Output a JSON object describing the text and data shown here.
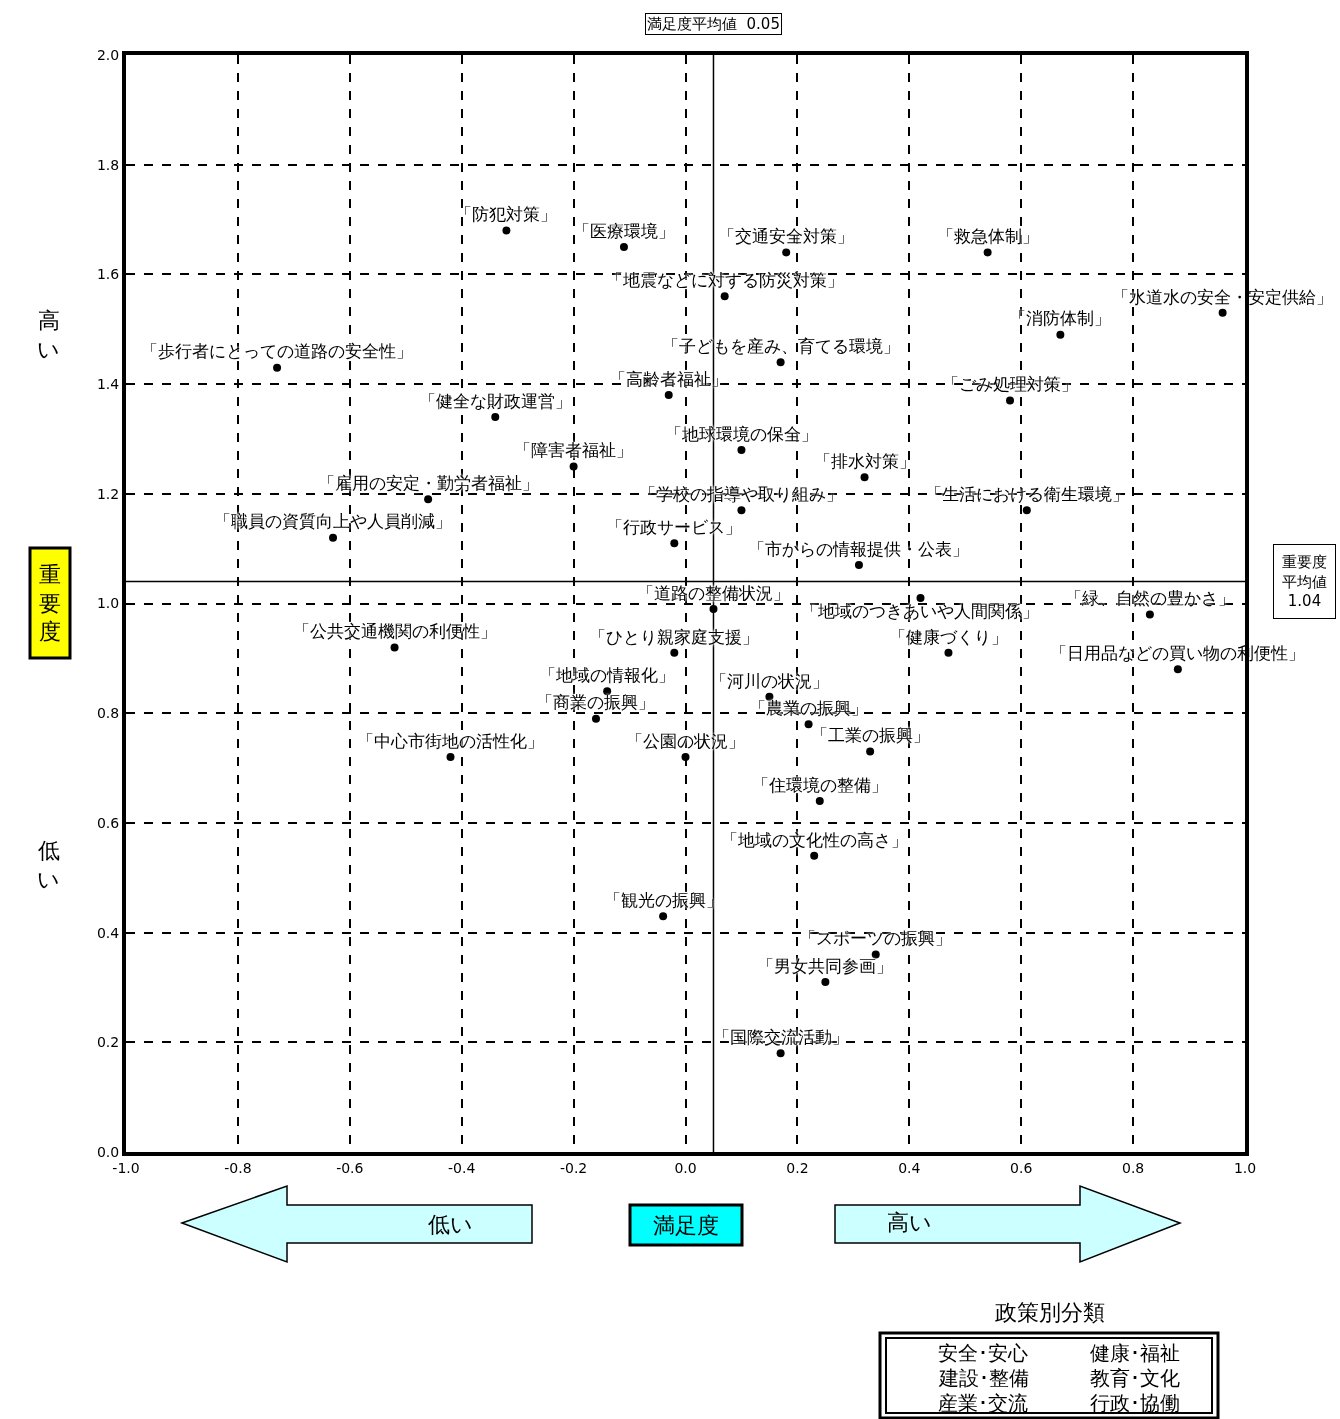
{
  "chart_data": {
    "type": "scatter",
    "marker": "circle",
    "xlabel": "満足度",
    "ylabel": "重要度",
    "xlim": [
      -1.0,
      1.0
    ],
    "ylim": [
      0.0,
      2.0
    ],
    "xticks": [
      {
        "value": -1.0,
        "label": "-1.0"
      },
      {
        "value": -0.8,
        "label": "-0.8"
      },
      {
        "value": -0.6,
        "label": "-0.6"
      },
      {
        "value": -0.4,
        "label": "-0.4"
      },
      {
        "value": -0.2,
        "label": "-0.2"
      },
      {
        "value": 0.0,
        "label": "0.0"
      },
      {
        "value": 0.2,
        "label": "0.2"
      },
      {
        "value": 0.4,
        "label": "0.4"
      },
      {
        "value": 0.6,
        "label": "0.6"
      },
      {
        "value": 0.8,
        "label": "0.8"
      },
      {
        "value": 1.0,
        "label": "1.0"
      }
    ],
    "yticks": [
      {
        "value": 0.0,
        "label": "0.0"
      },
      {
        "value": 0.2,
        "label": "0.2"
      },
      {
        "value": 0.4,
        "label": "0.4"
      },
      {
        "value": 0.6,
        "label": "0.6"
      },
      {
        "value": 0.8,
        "label": "0.8"
      },
      {
        "value": 1.0,
        "label": "1.0"
      },
      {
        "value": 1.2,
        "label": "1.2"
      },
      {
        "value": 1.4,
        "label": "1.4"
      },
      {
        "value": 1.6,
        "label": "1.6"
      },
      {
        "value": 1.8,
        "label": "1.8"
      },
      {
        "value": 2.0,
        "label": "2.0"
      }
    ],
    "grid": true,
    "series": [
      {
        "color": "#000000",
        "x": [
          -0.32,
          -0.11,
          0.18,
          0.54,
          0.07,
          0.96,
          0.67,
          -0.73,
          0.17,
          -0.03,
          0.58,
          -0.34,
          0.1,
          -0.2,
          0.32,
          -0.46,
          0.1,
          0.61,
          -0.63,
          -0.02,
          0.31,
          0.42,
          0.05,
          0.83,
          -0.52,
          -0.02,
          0.47,
          0.88,
          -0.14,
          0.15,
          -0.16,
          0.22,
          -0.42,
          0.0,
          0.33,
          0.24,
          0.23,
          -0.04,
          0.34,
          0.25,
          0.17
        ],
        "values": [
          1.68,
          1.65,
          1.64,
          1.64,
          1.56,
          1.53,
          1.49,
          1.43,
          1.44,
          1.38,
          1.37,
          1.34,
          1.28,
          1.25,
          1.23,
          1.19,
          1.17,
          1.17,
          1.12,
          1.11,
          1.07,
          1.01,
          0.99,
          0.98,
          0.92,
          0.91,
          0.91,
          0.88,
          0.84,
          0.83,
          0.79,
          0.78,
          0.72,
          0.72,
          0.73,
          0.64,
          0.54,
          0.43,
          0.36,
          0.31,
          0.18
        ],
        "value_labels": [
          "「防犯対策」",
          "「医療環境」",
          "「交通安全対策」",
          "「救急体制」",
          "「地震などに対する防災対策」",
          "「水道水の安全・安定供給」",
          "「消防体制」",
          "「歩行者にとっての道路の安全性」",
          "「子どもを産み、育てる環境」",
          "「高齢者福祉」",
          "「ごみ処理対策」",
          "「健全な財政運営」",
          "「地球環境の保全」",
          "「障害者福祉」",
          "「排水対策」",
          "「雇用の安定・勤労者福祉」",
          "「学校の指導や取り組み」",
          "「生活における衛生環境」",
          "「職員の資質向上や人員削減」",
          "「行政サービス」",
          "「市からの情報提供・公表」",
          "「地域のつきあいや人間関係」",
          "「道路の整備状況」",
          "「緑、自然の豊かさ」",
          "「公共交通機関の利便性」",
          "「ひとり親家庭支援」",
          "「健康づくり」",
          "「日用品などの買い物の利便性」",
          "「地域の情報化」",
          "「河川の状況」",
          "「商業の振興」",
          "「農業の振興」",
          "「中心市街地の活性化」",
          "「公園の状況」",
          "「工業の振興」",
          "「住環境の整備」",
          "「地域の文化性の高さ」",
          "「観光の振興」",
          "「スポーツの振興」",
          "「男女共同参画」",
          "「国際交流活動」"
        ]
      }
    ],
    "ref_lines": [
      {
        "axis": "x",
        "value": 0.05,
        "label": "満足度平均値  0.05",
        "color": "#000000"
      },
      {
        "axis": "y",
        "value": 1.04,
        "label": "重要度平均値 1.04",
        "color": "#000000"
      }
    ],
    "annotations": [
      "高い",
      "低い",
      "低い",
      "高い",
      "政策別分類",
      "安全･安心",
      "健康･福祉",
      "建設･整備",
      "教育･文化",
      "産業･交流",
      "行政･協働"
    ]
  }
}
